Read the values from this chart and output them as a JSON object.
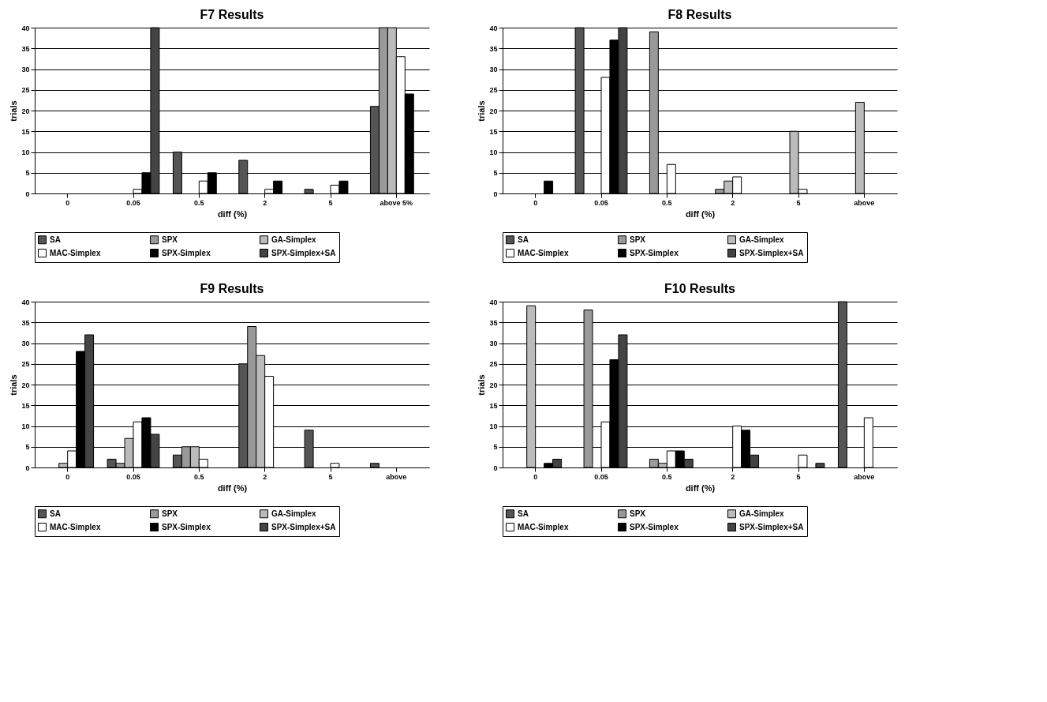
{
  "chart_data": [
    {
      "type": "bar",
      "title": "F7  Results",
      "xlabel": "diff (%)",
      "ylabel": "trials",
      "categories": [
        "0",
        "0.05",
        "0.5",
        "2",
        "5",
        "above 5%"
      ],
      "ylim": [
        0,
        40
      ],
      "yticks": [
        0,
        5,
        10,
        15,
        20,
        25,
        30,
        35,
        40
      ],
      "grid": "y",
      "legend": "bottom",
      "series": [
        {
          "name": "SA",
          "color": "#555555",
          "values": [
            null,
            null,
            10,
            8,
            1,
            21
          ]
        },
        {
          "name": "SPX",
          "color": "#999999",
          "values": [
            null,
            null,
            null,
            null,
            null,
            40
          ]
        },
        {
          "name": "GA-Simplex",
          "color": "#bbbbbb",
          "values": [
            null,
            null,
            null,
            null,
            null,
            40
          ]
        },
        {
          "name": "MAC-Simplex",
          "color": "#ffffff",
          "values": [
            null,
            1,
            3,
            1,
            2,
            33
          ]
        },
        {
          "name": "SPX-Simplex",
          "color": "#000000",
          "values": [
            null,
            5,
            5,
            3,
            3,
            24
          ]
        },
        {
          "name": "SPX-Simplex+SA",
          "color": "#444444",
          "values": [
            null,
            40,
            null,
            null,
            null,
            null
          ]
        }
      ]
    },
    {
      "type": "bar",
      "title": "F8 Results",
      "xlabel": "diff (%)",
      "ylabel": "trials",
      "categories": [
        "0",
        "0.05",
        "0.5",
        "2",
        "5",
        "above"
      ],
      "ylim": [
        0,
        40
      ],
      "yticks": [
        0,
        5,
        10,
        15,
        20,
        25,
        30,
        35,
        40
      ],
      "grid": "y",
      "legend": "bottom",
      "series": [
        {
          "name": "SA",
          "color": "#555555",
          "values": [
            null,
            40,
            null,
            null,
            null,
            null
          ]
        },
        {
          "name": "SPX",
          "color": "#999999",
          "values": [
            null,
            null,
            39,
            1,
            null,
            null
          ]
        },
        {
          "name": "GA-Simplex",
          "color": "#bbbbbb",
          "values": [
            null,
            null,
            null,
            3,
            15,
            22
          ]
        },
        {
          "name": "MAC-Simplex",
          "color": "#ffffff",
          "values": [
            null,
            28,
            7,
            4,
            1,
            null
          ]
        },
        {
          "name": "SPX-Simplex",
          "color": "#000000",
          "values": [
            3,
            37,
            null,
            null,
            null,
            null
          ]
        },
        {
          "name": "SPX-Simplex+SA",
          "color": "#444444",
          "values": [
            null,
            40,
            null,
            null,
            null,
            null
          ]
        }
      ]
    },
    {
      "type": "bar",
      "title": "F9 Results",
      "xlabel": "diff (%)",
      "ylabel": "trials",
      "categories": [
        "0",
        "0.05",
        "0.5",
        "2",
        "5",
        "above"
      ],
      "ylim": [
        0,
        40
      ],
      "yticks": [
        0,
        5,
        10,
        15,
        20,
        25,
        30,
        35,
        40
      ],
      "grid": "y",
      "legend": "bottom",
      "series": [
        {
          "name": "SA",
          "color": "#555555",
          "values": [
            null,
            2,
            3,
            25,
            9,
            1
          ]
        },
        {
          "name": "SPX",
          "color": "#999999",
          "values": [
            null,
            1,
            5,
            34,
            null,
            null
          ]
        },
        {
          "name": "GA-Simplex",
          "color": "#bbbbbb",
          "values": [
            1,
            7,
            5,
            27,
            null,
            null
          ]
        },
        {
          "name": "MAC-Simplex",
          "color": "#ffffff",
          "values": [
            4,
            11,
            2,
            22,
            1,
            null
          ]
        },
        {
          "name": "SPX-Simplex",
          "color": "#000000",
          "values": [
            28,
            12,
            null,
            null,
            null,
            null
          ]
        },
        {
          "name": "SPX-Simplex+SA",
          "color": "#444444",
          "values": [
            32,
            8,
            null,
            null,
            null,
            null
          ]
        }
      ]
    },
    {
      "type": "bar",
      "title": "F10 Results",
      "xlabel": "diff (%)",
      "ylabel": "trials",
      "categories": [
        "0",
        "0.05",
        "0.5",
        "2",
        "5",
        "above"
      ],
      "ylim": [
        0,
        40
      ],
      "yticks": [
        0,
        5,
        10,
        15,
        20,
        25,
        30,
        35,
        40
      ],
      "grid": "y",
      "legend": "bottom",
      "series": [
        {
          "name": "SA",
          "color": "#555555",
          "values": [
            null,
            null,
            null,
            null,
            null,
            40
          ]
        },
        {
          "name": "SPX",
          "color": "#999999",
          "values": [
            null,
            38,
            2,
            null,
            null,
            null
          ]
        },
        {
          "name": "GA-Simplex",
          "color": "#bbbbbb",
          "values": [
            39,
            null,
            1,
            null,
            null,
            null
          ]
        },
        {
          "name": "MAC-Simplex",
          "color": "#ffffff",
          "values": [
            null,
            11,
            4,
            10,
            3,
            12
          ]
        },
        {
          "name": "SPX-Simplex",
          "color": "#000000",
          "values": [
            1,
            26,
            4,
            9,
            null,
            null
          ]
        },
        {
          "name": "SPX-Simplex+SA",
          "color": "#444444",
          "values": [
            2,
            32,
            2,
            3,
            1,
            null
          ]
        }
      ]
    }
  ]
}
